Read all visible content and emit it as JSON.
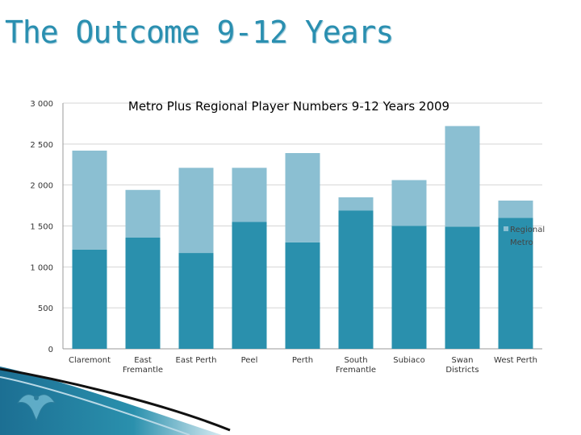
{
  "slide": {
    "title": "The Outcome 9-12 Years"
  },
  "colors": {
    "metro": "#2a90ad",
    "regional": "#8bbfd2",
    "title": "#2a8fb0"
  },
  "chart_data": {
    "type": "bar",
    "stacked": true,
    "title": "Metro Plus Regional Player Numbers 9-12 Years 2009",
    "xlabel": "",
    "ylabel": "",
    "ylim": [
      0,
      3000
    ],
    "yticks": [
      0,
      500,
      1000,
      1500,
      2000,
      2500,
      3000
    ],
    "ytick_labels": [
      "0",
      "500",
      "1 000",
      "1 500",
      "2 000",
      "2 500",
      "3 000"
    ],
    "grid": true,
    "legend": "right",
    "categories": [
      "Claremont",
      "East Fremantle",
      "East Perth",
      "Peel",
      "Perth",
      "South Fremantle",
      "Subiaco",
      "Swan Districts",
      "West Perth"
    ],
    "category_lines": [
      [
        "Claremont"
      ],
      [
        "East",
        "Fremantle"
      ],
      [
        "East Perth"
      ],
      [
        "Peel"
      ],
      [
        "Perth"
      ],
      [
        "South",
        "Fremantle"
      ],
      [
        "Subiaco"
      ],
      [
        "Swan",
        "Districts"
      ],
      [
        "West Perth"
      ]
    ],
    "series": [
      {
        "name": "Metro",
        "values": [
          1210,
          1360,
          1170,
          1550,
          1300,
          1690,
          1500,
          1490,
          1600
        ]
      },
      {
        "name": "Regional",
        "values": [
          1210,
          580,
          1040,
          660,
          1090,
          160,
          560,
          1230,
          210
        ]
      }
    ]
  }
}
